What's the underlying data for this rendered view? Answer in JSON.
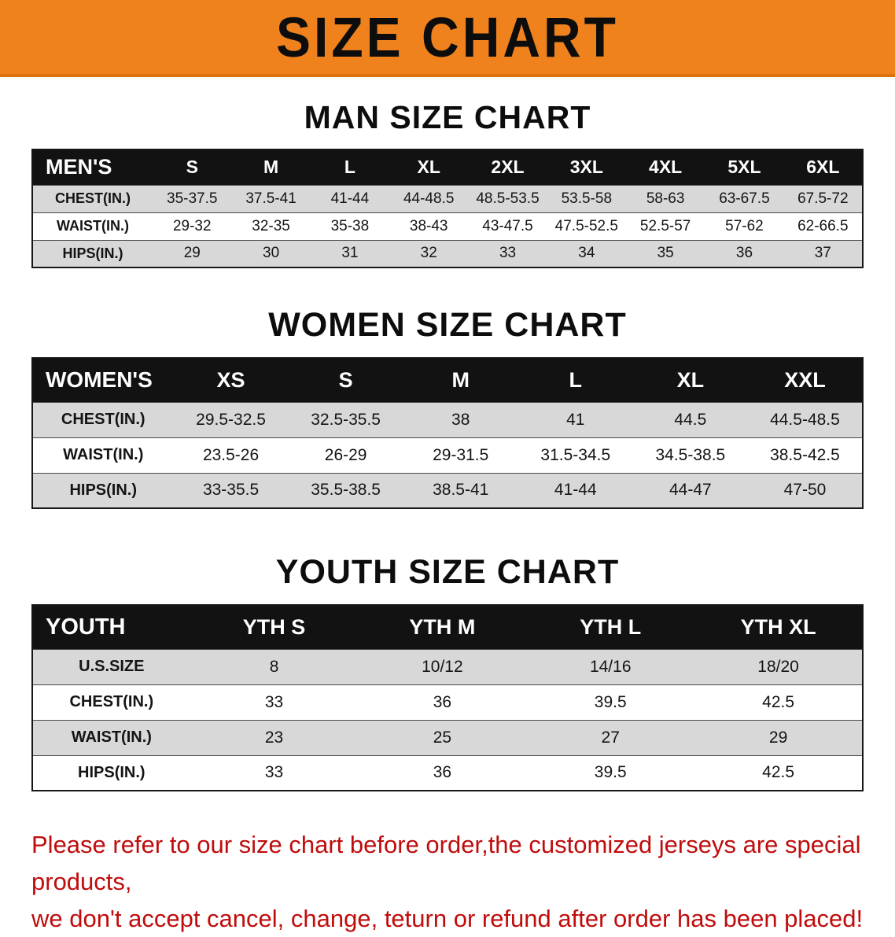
{
  "banner": {
    "title": "SIZE CHART"
  },
  "colors": {
    "banner_orange": "#F0821E",
    "table_header_black": "#121212",
    "row_stripe_gray": "#D8D8D8",
    "disclaimer_red": "#C00C0C"
  },
  "sections": [
    {
      "id": "men",
      "heading": "MAN SIZE CHART",
      "header": [
        "MEN'S",
        "S",
        "M",
        "L",
        "XL",
        "2XL",
        "3XL",
        "4XL",
        "5XL",
        "6XL"
      ],
      "rows": [
        [
          "CHEST(IN.)",
          "35-37.5",
          "37.5-41",
          "41-44",
          "44-48.5",
          "48.5-53.5",
          "53.5-58",
          "58-63",
          "63-67.5",
          "67.5-72"
        ],
        [
          "WAIST(IN.)",
          "29-32",
          "32-35",
          "35-38",
          "38-43",
          "43-47.5",
          "47.5-52.5",
          "52.5-57",
          "57-62",
          "62-66.5"
        ],
        [
          "HIPS(IN.)",
          "29",
          "30",
          "31",
          "32",
          "33",
          "34",
          "35",
          "36",
          "37"
        ]
      ]
    },
    {
      "id": "women",
      "heading": "WOMEN SIZE CHART",
      "header": [
        "WOMEN'S",
        "XS",
        "S",
        "M",
        "L",
        "XL",
        "XXL"
      ],
      "rows": [
        [
          "CHEST(IN.)",
          "29.5-32.5",
          "32.5-35.5",
          "38",
          "41",
          "44.5",
          "44.5-48.5"
        ],
        [
          "WAIST(IN.)",
          "23.5-26",
          "26-29",
          "29-31.5",
          "31.5-34.5",
          "34.5-38.5",
          "38.5-42.5"
        ],
        [
          "HIPS(IN.)",
          "33-35.5",
          "35.5-38.5",
          "38.5-41",
          "41-44",
          "44-47",
          "47-50"
        ]
      ]
    },
    {
      "id": "youth",
      "heading": "YOUTH SIZE CHART",
      "header": [
        "YOUTH",
        "YTH S",
        "YTH M",
        "YTH L",
        "YTH XL"
      ],
      "rows": [
        [
          "U.S.SIZE",
          "8",
          "10/12",
          "14/16",
          "18/20"
        ],
        [
          "CHEST(IN.)",
          "33",
          "36",
          "39.5",
          "42.5"
        ],
        [
          "WAIST(IN.)",
          "23",
          "25",
          "27",
          "29"
        ],
        [
          "HIPS(IN.)",
          "33",
          "36",
          "39.5",
          "42.5"
        ]
      ]
    }
  ],
  "disclaimer": {
    "lines": [
      "Please refer to our size chart before order,the customized jerseys are special products,",
      "we don't accept cancel, change, teturn or refund after order has been placed!"
    ]
  }
}
